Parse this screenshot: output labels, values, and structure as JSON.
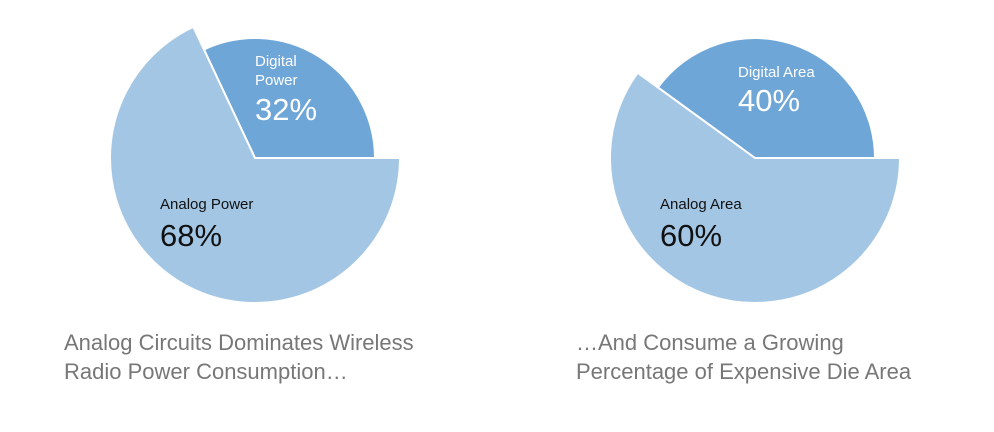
{
  "chart_data": [
    {
      "type": "pie",
      "title": "Analog Circuits Dominates Wireless Radio Power Consumption…",
      "categories": [
        "Digital Power",
        "Analog Power"
      ],
      "values": [
        32,
        68
      ],
      "value_labels": [
        "32%",
        "68%"
      ],
      "colors": [
        "#6fa6d8",
        "#a3c6e4"
      ]
    },
    {
      "type": "pie",
      "title": "…And Consume a Growing Percentage of Expensive Die Area",
      "categories": [
        "Digital Area",
        "Analog Area"
      ],
      "values": [
        40,
        60
      ],
      "value_labels": [
        "40%",
        "60%"
      ],
      "colors": [
        "#6fa6d8",
        "#a3c6e4"
      ]
    }
  ]
}
